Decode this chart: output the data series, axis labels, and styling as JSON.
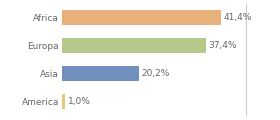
{
  "categories": [
    "America",
    "Asia",
    "Europa",
    "Africa"
  ],
  "values": [
    1.0,
    20.2,
    37.4,
    41.4
  ],
  "labels": [
    "1,0%",
    "20,2%",
    "37,4%",
    "41,4%"
  ],
  "bar_colors": [
    "#e8c87a",
    "#7090bb",
    "#b5c98a",
    "#e8b07a"
  ],
  "background_color": "#ffffff",
  "xlim": [
    0,
    48
  ],
  "label_fontsize": 6.5,
  "tick_fontsize": 6.5,
  "bar_height": 0.55,
  "text_color": "#666666",
  "border_color": "#cccccc"
}
